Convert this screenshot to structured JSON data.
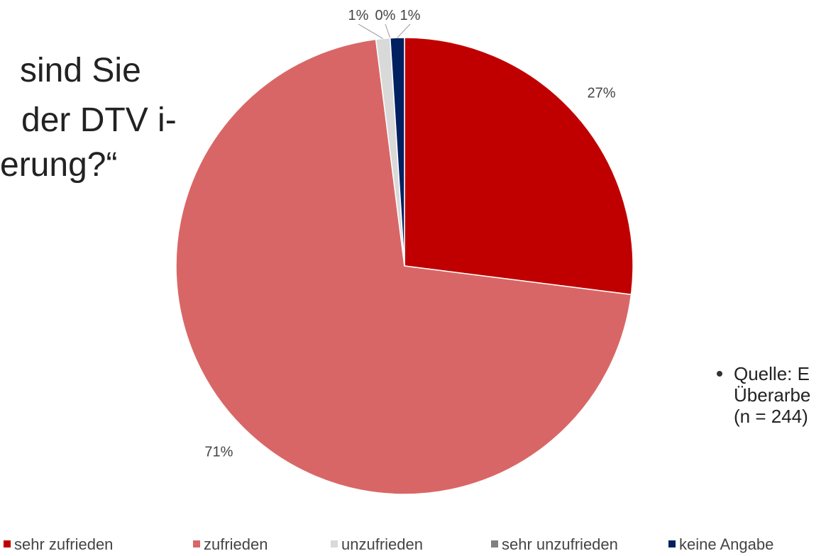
{
  "chart_data": {
    "type": "pie",
    "categories": [
      "sehr zufrieden",
      "zufrieden",
      "unzufrieden",
      "sehr unzufrieden",
      "keine Angabe"
    ],
    "values": [
      27,
      71,
      1,
      0,
      1
    ],
    "value_labels": [
      "27%",
      "71%",
      "1%",
      "0%",
      "1%"
    ],
    "colors": [
      "#c00000",
      "#d96666",
      "#d9d9d9",
      "#808080",
      "#002060"
    ],
    "legend": "bottom"
  },
  "slide": {
    "title_lines": [
      "sind Sie",
      "der DTV i-",
      "erung?“"
    ],
    "source_lines": [
      "Quelle: E",
      "Überarbe",
      "(n = 244)"
    ]
  }
}
